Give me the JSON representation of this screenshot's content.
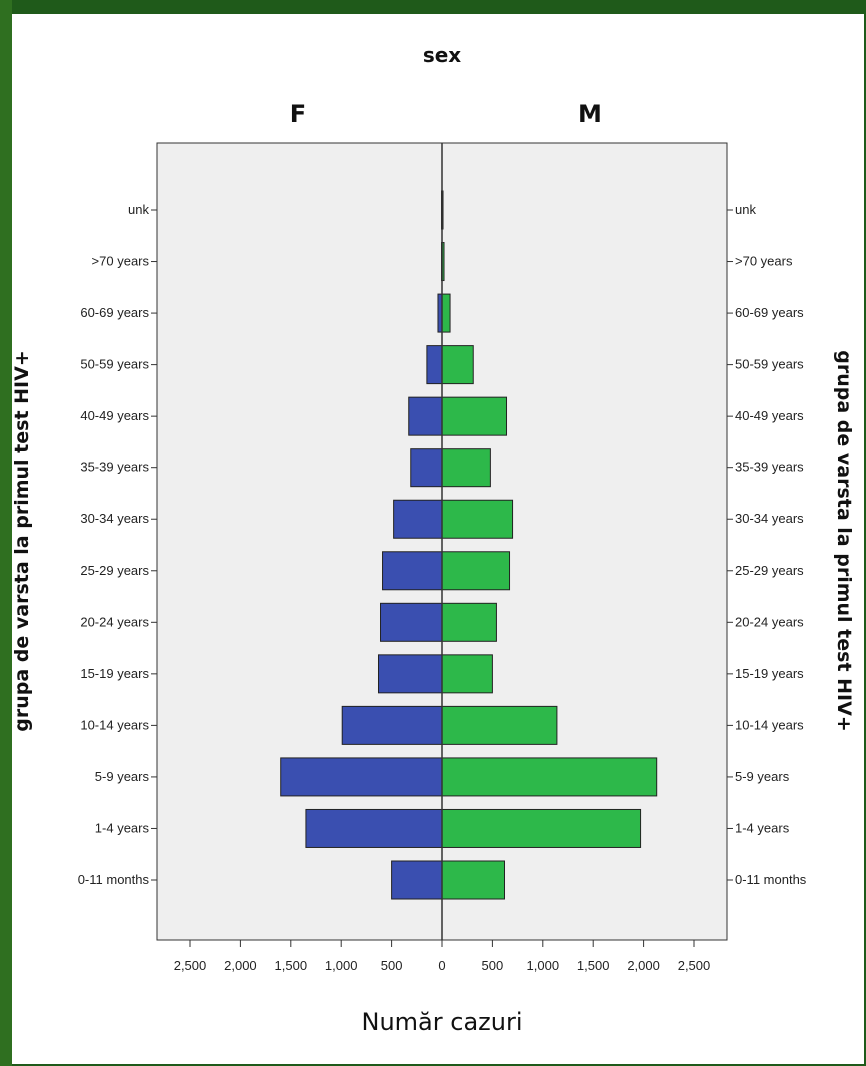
{
  "chart_data": {
    "type": "bar",
    "orientation": "horizontal",
    "layout": "population-pyramid",
    "title": "sex",
    "xlabel": "Număr cazuri",
    "ylabel": "grupa de varsta la primul test HIV+",
    "xlim": [
      0,
      2500
    ],
    "x_ticks": [
      "2,500",
      "2,000",
      "1,500",
      "1,000",
      "500",
      "0",
      "500",
      "1,000",
      "1,500",
      "2,000",
      "2,500"
    ],
    "categories": [
      "0-11 months",
      "1-4 years",
      "5-9 years",
      "10-14 years",
      "15-19 years",
      "20-24 years",
      "25-29 years",
      "30-34 years",
      "35-39 years",
      "40-49 years",
      "50-59 years",
      "60-69 years",
      ">70 years",
      "unk"
    ],
    "series": [
      {
        "name": "F",
        "color": "#3a4fb0",
        "values": [
          500,
          1350,
          1600,
          990,
          630,
          610,
          590,
          480,
          310,
          330,
          150,
          40,
          5,
          5
        ]
      },
      {
        "name": "M",
        "color": "#2db84a",
        "values": [
          620,
          1970,
          2130,
          1140,
          500,
          540,
          670,
          700,
          480,
          640,
          310,
          80,
          20,
          10
        ]
      }
    ],
    "grid": false,
    "plot_background": "#efefef"
  }
}
